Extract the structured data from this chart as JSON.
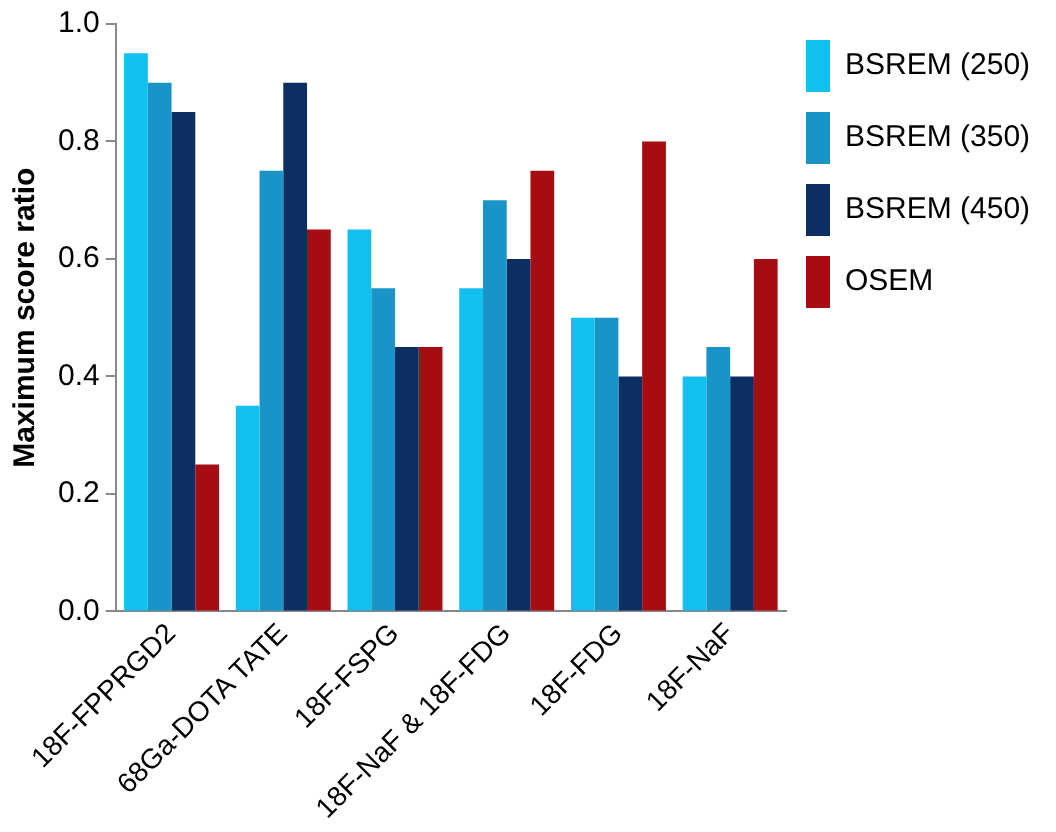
{
  "chart_data": {
    "type": "bar",
    "ylabel": "Maximum score ratio",
    "categories": [
      "18F-FPPRGD2",
      "68Ga-DOTA TATE",
      "18F-FSPG",
      "18F-NaF & 18F-FDG",
      "18F-FDG",
      "18F-NaF"
    ],
    "series": [
      {
        "name": "BSREM (250)",
        "color": "#12c0f0",
        "values": [
          0.95,
          0.35,
          0.65,
          0.55,
          0.5,
          0.4
        ]
      },
      {
        "name": "BSREM (350)",
        "color": "#1a93c6",
        "values": [
          0.9,
          0.75,
          0.55,
          0.7,
          0.5,
          0.45
        ]
      },
      {
        "name": "BSREM (450)",
        "color": "#0c2f63",
        "values": [
          0.85,
          0.9,
          0.45,
          0.6,
          0.4,
          0.4
        ]
      },
      {
        "name": "OSEM",
        "color": "#a50d12",
        "values": [
          0.25,
          0.65,
          0.45,
          0.75,
          0.8,
          0.6
        ]
      }
    ],
    "ylim": [
      0,
      1
    ],
    "yticks": [
      {
        "value": 0,
        "label": "0.0"
      },
      {
        "value": 0.2,
        "label": "0.2"
      },
      {
        "value": 0.4,
        "label": "0.4"
      },
      {
        "value": 0.6,
        "label": "0.6"
      },
      {
        "value": 0.8,
        "label": "0.8"
      },
      {
        "value": 1,
        "label": "1.0"
      }
    ],
    "grid": false,
    "legend": "right"
  }
}
